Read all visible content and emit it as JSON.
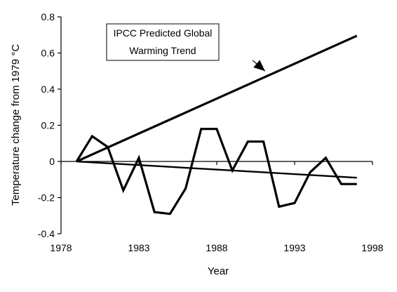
{
  "chart_data": {
    "type": "line",
    "xlabel": "Year",
    "ylabel": "Temperature change from 1979  °C",
    "xlim": [
      1978,
      1998
    ],
    "ylim": [
      -0.4,
      0.8
    ],
    "x_ticks": [
      1978,
      1983,
      1988,
      1993,
      1998
    ],
    "y_ticks": [
      -0.4,
      -0.2,
      0,
      0.2,
      0.4,
      0.6,
      0.8
    ],
    "x_tick_labels": [
      "1978",
      "1983",
      "1988",
      "1993",
      "1998"
    ],
    "y_tick_labels": [
      "-0.4",
      "-0.2",
      "0",
      "0.2",
      "0.4",
      "0.6",
      "0.8"
    ],
    "grid": false,
    "series": [
      {
        "x": [
          1979,
          1980,
          1981,
          1982,
          1983,
          1984,
          1985,
          1986,
          1987,
          1988,
          1989,
          1990,
          1991,
          1992,
          1993,
          1994,
          1995,
          1996,
          1997
        ],
        "values": [
          0.0,
          0.14,
          0.08,
          -0.16,
          0.02,
          -0.28,
          -0.29,
          -0.15,
          0.18,
          0.18,
          -0.05,
          0.11,
          0.11,
          -0.25,
          -0.23,
          -0.06,
          0.02,
          -0.125,
          -0.125
        ]
      },
      {
        "x": [
          1979,
          1997
        ],
        "values": [
          0.0,
          0.695
        ]
      },
      {
        "x": [
          1979,
          1997
        ],
        "values": [
          0.0,
          -0.09
        ]
      }
    ],
    "annotations": [
      {
        "lines": [
          "IPCC Predicted Global",
          "Warming Trend"
        ],
        "arrow_from": [
          1990.3,
          0.56
        ],
        "arrow_to": [
          1991.1,
          0.5
        ]
      }
    ]
  }
}
